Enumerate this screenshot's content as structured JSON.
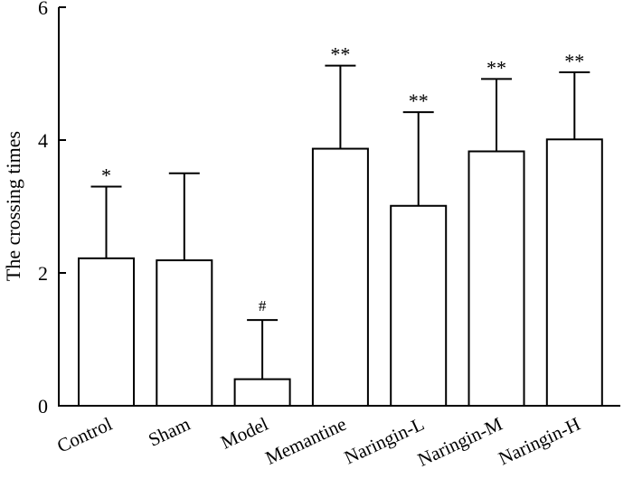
{
  "chart_data": {
    "type": "bar",
    "title": "",
    "xlabel": "",
    "ylabel": "The crossing times",
    "ylim": [
      0,
      6
    ],
    "yticks": [
      "0",
      "2",
      "4",
      "6"
    ],
    "grid": false,
    "categories": [
      "Control",
      "Sham",
      "Model",
      "Memantine",
      "Naringin-L",
      "Naringin-M",
      "Naringin-H"
    ],
    "values": [
      2.22,
      2.19,
      0.4,
      3.87,
      3.01,
      3.83,
      4.01
    ],
    "error_upper": [
      1.08,
      1.31,
      0.89,
      1.25,
      1.41,
      1.09,
      1.01
    ],
    "annotations": [
      "*",
      "",
      "#",
      "**",
      "**",
      "**",
      "**"
    ]
  }
}
